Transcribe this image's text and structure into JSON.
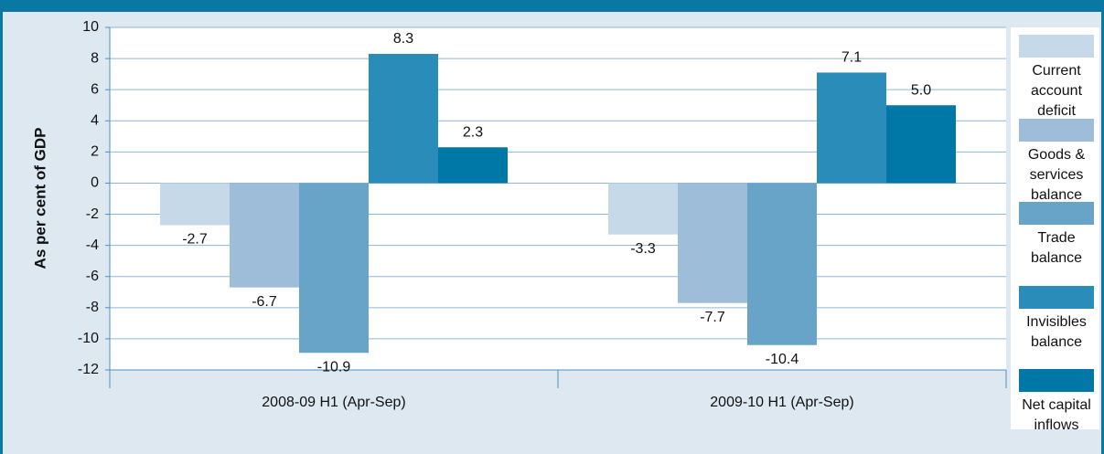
{
  "chart_data": {
    "type": "bar",
    "y_label": "As per cent of GDP",
    "categories": [
      "2008-09 H1 (Apr-Sep)",
      "2009-10 H1 (Apr-Sep)"
    ],
    "series": [
      {
        "name": "Current account deficit",
        "color": "#c6d9e8",
        "values": [
          -2.7,
          -3.3
        ],
        "value_labels": [
          "-2.7",
          "-3.3"
        ]
      },
      {
        "name": "Goods & services balance",
        "color": "#9dbdd9",
        "values": [
          -6.7,
          -7.7
        ],
        "value_labels": [
          "-6.7",
          "-7.7"
        ]
      },
      {
        "name": "Trade balance",
        "color": "#68a4c8",
        "values": [
          -10.9,
          -10.4
        ],
        "value_labels": [
          "-10.9",
          "-10.4"
        ]
      },
      {
        "name": "Invisibles balance",
        "color": "#2a8db9",
        "values": [
          8.3,
          7.1
        ],
        "value_labels": [
          "8.3",
          "7.1"
        ]
      },
      {
        "name": "Net capital inflows",
        "color": "#0078a7",
        "values": [
          2.3,
          5.0
        ],
        "value_labels": [
          "2.3",
          "5.0"
        ]
      }
    ],
    "ylim": [
      -12,
      10
    ],
    "yticks": [
      -12,
      -10,
      -8,
      -6,
      -4,
      -2,
      0,
      2,
      4,
      6,
      8,
      10
    ],
    "grid": true
  }
}
